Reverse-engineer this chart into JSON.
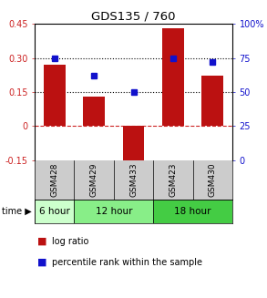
{
  "title": "GDS135 / 760",
  "samples": [
    "GSM428",
    "GSM429",
    "GSM433",
    "GSM423",
    "GSM430"
  ],
  "log_ratio": [
    0.27,
    0.13,
    -0.18,
    0.43,
    0.22
  ],
  "percentile_rank": [
    75,
    62,
    50,
    75,
    72
  ],
  "bar_color": "#bb1111",
  "dot_color": "#1111cc",
  "ylim_left": [
    -0.15,
    0.45
  ],
  "ylim_right": [
    0,
    100
  ],
  "yticks_left": [
    -0.15,
    0,
    0.15,
    0.3,
    0.45
  ],
  "ytick_labels_left": [
    "-0.15",
    "0",
    "0.15",
    "0.30",
    "0.45"
  ],
  "yticks_right": [
    0,
    25,
    50,
    75,
    100
  ],
  "ytick_labels_right": [
    "0",
    "25",
    "50",
    "75",
    "100%"
  ],
  "hline_dotted": [
    0.15,
    0.3
  ],
  "hline_dashed_red": 0,
  "time_group_info": [
    {
      "label": "6 hour",
      "start": 0,
      "end": 0,
      "color": "#ccffcc"
    },
    {
      "label": "12 hour",
      "start": 1,
      "end": 2,
      "color": "#88ee88"
    },
    {
      "label": "18 hour",
      "start": 3,
      "end": 4,
      "color": "#44cc44"
    }
  ],
  "legend_bar_label": "log ratio",
  "legend_dot_label": "percentile rank within the sample",
  "bar_width": 0.55,
  "sample_bg_color": "#cccccc",
  "plot_bg_color": "#ffffff"
}
